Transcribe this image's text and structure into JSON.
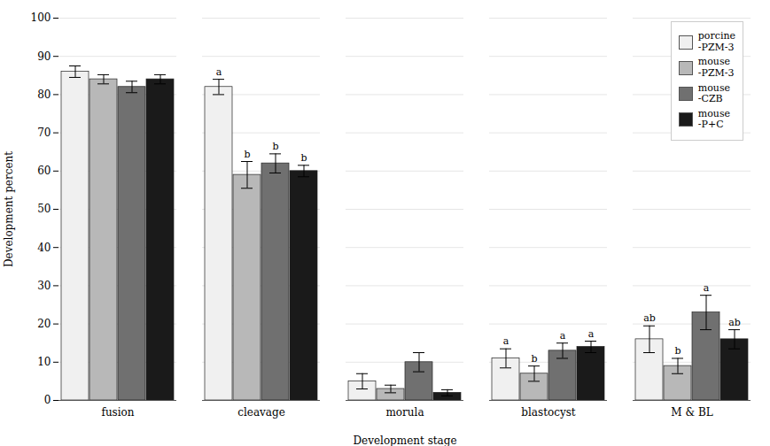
{
  "chart_data": {
    "type": "bar",
    "categories": [
      "fusion",
      "cleavage",
      "morula",
      "blastocyst",
      "M & BL"
    ],
    "series": [
      {
        "name": "porcine\n-PZM-3",
        "color": "#f0f0f0",
        "values": [
          86,
          82,
          5,
          11,
          16
        ],
        "errors": [
          1.5,
          2.0,
          2.0,
          2.5,
          3.5
        ],
        "annotations": [
          null,
          "a",
          null,
          "a",
          "ab"
        ]
      },
      {
        "name": "mouse\n-PZM-3",
        "color": "#b8b8b8",
        "values": [
          84,
          59,
          3,
          7,
          9
        ],
        "errors": [
          1.2,
          3.5,
          1.0,
          2.0,
          2.0
        ],
        "annotations": [
          null,
          "b",
          null,
          "b",
          "b"
        ]
      },
      {
        "name": "mouse\n-CZB",
        "color": "#707070",
        "values": [
          82,
          62,
          10,
          13,
          23
        ],
        "errors": [
          1.5,
          2.5,
          2.5,
          2.0,
          4.5
        ],
        "annotations": [
          null,
          "b",
          null,
          "a",
          "a"
        ]
      },
      {
        "name": "mouse\n-P+C",
        "color": "#1a1a1a",
        "values": [
          84,
          60,
          2,
          14,
          16
        ],
        "errors": [
          1.2,
          1.5,
          0.8,
          1.5,
          2.5
        ],
        "annotations": [
          null,
          "b",
          null,
          "a",
          "ab"
        ]
      }
    ],
    "xlabel": "Development stage",
    "ylabel": "Development percent",
    "ylim": [
      0,
      100
    ],
    "yticks": [
      0,
      10,
      20,
      30,
      40,
      50,
      60,
      70,
      80,
      90,
      100
    ],
    "grid": true,
    "legend": "upper right"
  }
}
